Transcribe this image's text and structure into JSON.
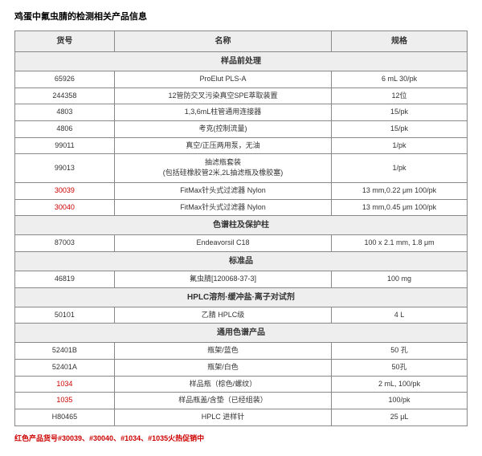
{
  "title": "鸡蛋中氟虫腈的检测相关产品信息",
  "headers": {
    "col1": "货号",
    "col2": "名称",
    "col3": "规格"
  },
  "sections": [
    {
      "name": "样品前处理",
      "rows": [
        {
          "code": "65926",
          "name": "ProElut PLS-A",
          "spec": "6 mL 30/pk",
          "red": false
        },
        {
          "code": "244358",
          "name": "12管防交叉污染真空SPE萃取装置",
          "spec": "12位",
          "red": false
        },
        {
          "code": "4803",
          "name": "1,3,6mL柱管通用连接器",
          "spec": "15/pk",
          "red": false
        },
        {
          "code": "4806",
          "name": "考克(控制流量)",
          "spec": "15/pk",
          "red": false
        },
        {
          "code": "99011",
          "name": "真空/正压两用泵，无油",
          "spec": "1/pk",
          "red": false
        },
        {
          "code": "99013",
          "name": "抽滤瓶套装\n(包括硅橡胶管2米,2L抽滤瓶及橡胶塞)",
          "spec": "1/pk",
          "red": false
        },
        {
          "code": "30039",
          "name": "FitMax针头式过滤器 Nylon",
          "spec": "13 mm,0.22 μm 100/pk",
          "red": true
        },
        {
          "code": "30040",
          "name": "FitMax针头式过滤器 Nylon",
          "spec": "13 mm,0.45 μm 100/pk",
          "red": true
        }
      ]
    },
    {
      "name": "色谱柱及保护柱",
      "rows": [
        {
          "code": "87003",
          "name": "Endeavorsil C18",
          "spec": "100 x 2.1 mm, 1.8 μm",
          "red": false
        }
      ]
    },
    {
      "name": "标准品",
      "rows": [
        {
          "code": "46819",
          "name": "氟虫腈[120068-37-3]",
          "spec": "100 mg",
          "red": false
        }
      ]
    },
    {
      "name": "HPLC溶剂·缓冲盐·离子对试剂",
      "rows": [
        {
          "code": "50101",
          "name": "乙腈 HPLC级",
          "spec": "4 L",
          "red": false
        }
      ]
    },
    {
      "name": "通用色谱产品",
      "rows": [
        {
          "code": "52401B",
          "name": "瓶架/蓝色",
          "spec": "50 孔",
          "red": false
        },
        {
          "code": "52401A",
          "name": "瓶架/白色",
          "spec": "50孔",
          "red": false
        },
        {
          "code": "1034",
          "name": "样品瓶（棕色/螺纹）",
          "spec": "2 mL, 100/pk",
          "red": true
        },
        {
          "code": "1035",
          "name": "样品瓶盖/含垫（已经组装）",
          "spec": "100/pk",
          "red": true
        },
        {
          "code": "H80465",
          "name": "HPLC 进样针",
          "spec": "25 μL",
          "red": false
        }
      ]
    }
  ],
  "footer": "红色产品货号#30039、#30040、#1034、#1035火热促销中"
}
